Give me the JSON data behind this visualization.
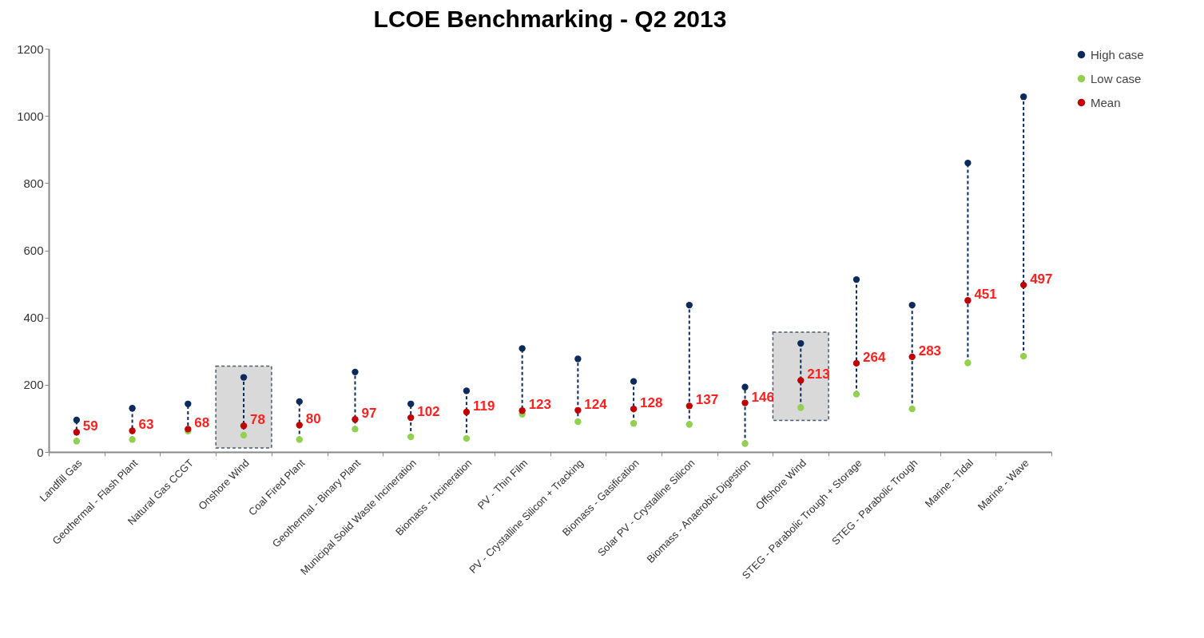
{
  "chart_data": {
    "type": "scatter",
    "title": "LCOE Benchmarking - Q2 2013",
    "categories": [
      "Landfill Gas",
      "Geothermal - Flash Plant",
      "Natural Gas CCGT",
      "Onshore Wind",
      "Coal Fired Plant",
      "Geothermal - Binary Plant",
      "Municipal Solid Waste Incineration",
      "Biomass - Incineration",
      "PV - Thin Film",
      "PV - Crystalline Silicon + Tracking",
      "Biomass - Gasification",
      "Solar PV - Crystalline Silicon",
      "Biomass - Anaerobic Digestion",
      "Offshore Wind",
      "STEG - Parabolic Trough + Storage",
      "STEG - Parabolic Trough",
      "Marine - Tidal",
      "Marine - Wave"
    ],
    "series": [
      {
        "name": "High case",
        "color": "#0d2a5c",
        "values": [
          95,
          130,
          143,
          222,
          150,
          238,
          143,
          182,
          308,
          277,
          210,
          437,
          193,
          323,
          513,
          437,
          860,
          1057
        ]
      },
      {
        "name": "Low case",
        "color": "#92d050",
        "values": [
          32,
          37,
          62,
          50,
          37,
          68,
          45,
          40,
          112,
          90,
          85,
          82,
          25,
          132,
          172,
          128,
          265,
          285
        ]
      },
      {
        "name": "Mean",
        "color": "#c00000",
        "values": [
          59,
          63,
          68,
          78,
          80,
          97,
          102,
          119,
          123,
          124,
          128,
          137,
          146,
          213,
          264,
          283,
          451,
          497
        ],
        "value_labels": [
          "59",
          "63",
          "68",
          "78",
          "80",
          "97",
          "102",
          "119",
          "123",
          "124",
          "128",
          "137",
          "146",
          "213",
          "264",
          "283",
          "451",
          "497"
        ]
      }
    ],
    "ylim": [
      0,
      1200
    ],
    "yticks": [
      0,
      200,
      400,
      600,
      800,
      1000,
      1200
    ],
    "bands": [
      {
        "axis": "x",
        "from": "Onshore Wind",
        "to": "Onshore Wind",
        "color": "#d9d9d9"
      },
      {
        "axis": "x",
        "from": "Offshore Wind",
        "to": "Offshore Wind",
        "color": "#d9d9d9"
      }
    ],
    "line_style": "dashed",
    "marker": "circle",
    "legend": "right"
  }
}
